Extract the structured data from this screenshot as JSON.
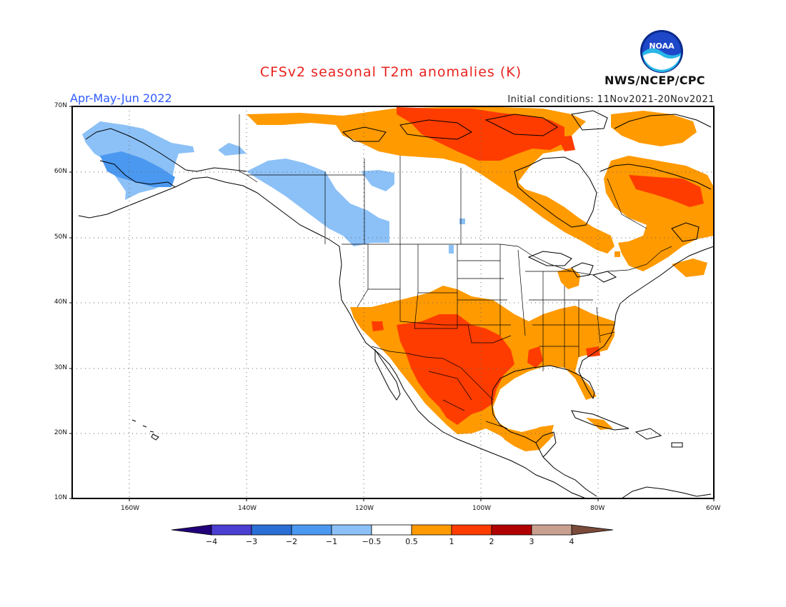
{
  "header": {
    "title": "CFSv2 seasonal T2m anomalies (K)",
    "period": "Apr-May-Jun 2022",
    "initial_conditions": "Initial conditions: 11Nov2021-20Nov2021",
    "agency": "NWS/NCEP/CPC",
    "logo_text": "NOAA"
  },
  "map": {
    "projection": "lat-lon",
    "lon_range_deg": [
      -172,
      -60
    ],
    "lat_range_deg": [
      10,
      70
    ],
    "lat_labels": [
      "70N",
      "60N",
      "50N",
      "40N",
      "30N",
      "20N",
      "10N"
    ],
    "lon_labels": [
      "160W",
      "140W",
      "120W",
      "100W",
      "80W",
      "60W"
    ],
    "grid": "dotted"
  },
  "colorbar": {
    "labels": [
      "-4",
      "-3",
      "-2",
      "-1",
      "-0.5",
      "0.5",
      "1",
      "2",
      "3",
      "4"
    ],
    "colors": [
      "#22007a",
      "#4a3fd0",
      "#2a6fd6",
      "#4b98f0",
      "#8cc1f7",
      "#ffffff",
      "#ff9a00",
      "#ff3c00",
      "#b00000",
      "#c9a090",
      "#7a4a3a"
    ]
  },
  "anomaly_regions": [
    {
      "name": "alaska-cool",
      "category": "-0.5 to -1",
      "color": "#8cc1f7"
    },
    {
      "name": "western-alaska-cool",
      "category": "-1 to -2",
      "color": "#4b98f0"
    },
    {
      "name": "pacific-northwest-cool",
      "category": "-0.5 to -1",
      "color": "#8cc1f7"
    },
    {
      "name": "northern-canada-warm",
      "category": "0.5 to 1",
      "color": "#ff9a00"
    },
    {
      "name": "nunavut-hot",
      "category": "1 to 2",
      "color": "#ff3c00"
    },
    {
      "name": "eastern-canada-warm",
      "category": "0.5 to 1",
      "color": "#ff9a00"
    },
    {
      "name": "quebec-hot",
      "category": "1 to 2",
      "color": "#ff3c00"
    },
    {
      "name": "southwest-us-warm",
      "category": "0.5 to 1",
      "color": "#ff9a00"
    },
    {
      "name": "southern-plains-mexico-hot",
      "category": "1 to 2",
      "color": "#ff3c00"
    },
    {
      "name": "southeast-us-warm",
      "category": "0.5 to 1",
      "color": "#ff9a00"
    },
    {
      "name": "central-america-warm",
      "category": "0.5 to 1",
      "color": "#ff9a00"
    }
  ]
}
